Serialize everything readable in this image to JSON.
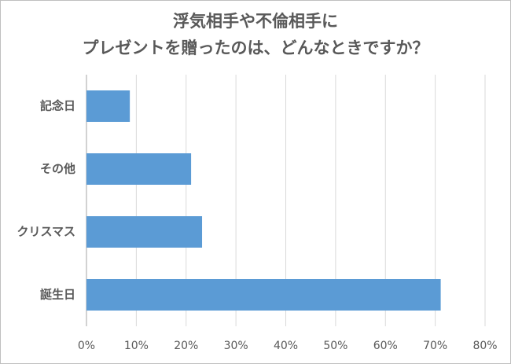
{
  "chart_data": {
    "type": "hbar",
    "title": [
      "浮気相手や不倫相手に",
      "プレゼントを贈ったのは、どんなときですか？"
    ],
    "categories": [
      "記念日",
      "その他",
      "クリスマス",
      "誕生日"
    ],
    "values": [
      8.7,
      21.0,
      23.2,
      71.1
    ],
    "color": "#5b9bd5",
    "xlim": [
      0,
      80
    ],
    "xticks": [
      {
        "value": 0,
        "label": "0%"
      },
      {
        "value": 10,
        "label": "10%"
      },
      {
        "value": 20,
        "label": "20%"
      },
      {
        "value": 30,
        "label": "30%"
      },
      {
        "value": 40,
        "label": "40%"
      },
      {
        "value": 50,
        "label": "50%"
      },
      {
        "value": 60,
        "label": "60%"
      },
      {
        "value": 70,
        "label": "70%"
      },
      {
        "value": 80,
        "label": "80%"
      }
    ],
    "grid": true
  }
}
